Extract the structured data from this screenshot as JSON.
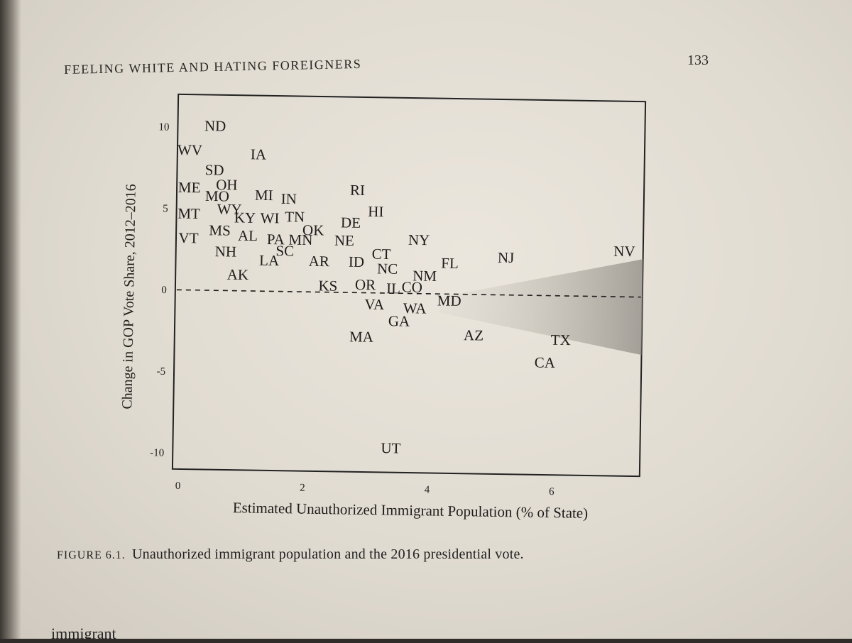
{
  "running_head": "FEELING WHITE AND HATING FOREIGNERS",
  "page_number": "133",
  "caption": {
    "label": "FIGURE 6.1.",
    "text": "Unauthorized immigrant population and the 2016 presidential vote."
  },
  "bottom_text": "immigrant",
  "chart_data": {
    "type": "scatter",
    "title": "",
    "xlabel": "Estimated Unauthorized Immigrant Population (% of State)",
    "ylabel": "Change in GOP Vote Share, 2012–2016",
    "xlim": [
      0,
      7.5
    ],
    "ylim": [
      -11,
      12
    ],
    "xticks": [
      0,
      2,
      4,
      6
    ],
    "yticks": [
      -10,
      -5,
      0,
      5,
      10
    ],
    "grid": false,
    "reference_line": {
      "y": 0,
      "style": "dashed"
    },
    "point_colors": {
      "text": "#1f1d1b",
      "band": "#9a968f"
    },
    "points": [
      {
        "label": "ND",
        "x": 0.6,
        "y": 10.0
      },
      {
        "label": "WV",
        "x": 0.2,
        "y": 8.5
      },
      {
        "label": "IA",
        "x": 1.3,
        "y": 8.3
      },
      {
        "label": "SD",
        "x": 0.6,
        "y": 7.3
      },
      {
        "label": "ME",
        "x": 0.2,
        "y": 6.2
      },
      {
        "label": "OH",
        "x": 0.8,
        "y": 6.4
      },
      {
        "label": "RI",
        "x": 2.9,
        "y": 6.2
      },
      {
        "label": "MO",
        "x": 0.65,
        "y": 5.7
      },
      {
        "label": "MI",
        "x": 1.4,
        "y": 5.8
      },
      {
        "label": "IN",
        "x": 1.8,
        "y": 5.6
      },
      {
        "label": "MT",
        "x": 0.2,
        "y": 4.6
      },
      {
        "label": "WY",
        "x": 0.85,
        "y": 4.9
      },
      {
        "label": "HI",
        "x": 3.2,
        "y": 4.9
      },
      {
        "label": "KY",
        "x": 1.1,
        "y": 4.4
      },
      {
        "label": "WI",
        "x": 1.5,
        "y": 4.4
      },
      {
        "label": "TN",
        "x": 1.9,
        "y": 4.5
      },
      {
        "label": "DE",
        "x": 2.8,
        "y": 4.2
      },
      {
        "label": "MS",
        "x": 0.7,
        "y": 3.6
      },
      {
        "label": "VT",
        "x": 0.2,
        "y": 3.1
      },
      {
        "label": "AL",
        "x": 1.15,
        "y": 3.3
      },
      {
        "label": "OK",
        "x": 2.2,
        "y": 3.7
      },
      {
        "label": "PA",
        "x": 1.6,
        "y": 3.1
      },
      {
        "label": "MN",
        "x": 2.0,
        "y": 3.1
      },
      {
        "label": "NE",
        "x": 2.7,
        "y": 3.1
      },
      {
        "label": "NY",
        "x": 3.9,
        "y": 3.2
      },
      {
        "label": "NH",
        "x": 0.8,
        "y": 2.3
      },
      {
        "label": "SC",
        "x": 1.75,
        "y": 2.4
      },
      {
        "label": "CT",
        "x": 3.3,
        "y": 2.3
      },
      {
        "label": "NJ",
        "x": 5.3,
        "y": 2.2
      },
      {
        "label": "NV",
        "x": 7.2,
        "y": 2.7
      },
      {
        "label": "LA",
        "x": 1.5,
        "y": 1.8
      },
      {
        "label": "AR",
        "x": 2.3,
        "y": 1.8
      },
      {
        "label": "ID",
        "x": 2.9,
        "y": 1.8
      },
      {
        "label": "FL",
        "x": 4.4,
        "y": 1.8
      },
      {
        "label": "NC",
        "x": 3.4,
        "y": 1.4
      },
      {
        "label": "AK",
        "x": 1.0,
        "y": 0.9
      },
      {
        "label": "NM",
        "x": 4.0,
        "y": 1.0
      },
      {
        "label": "KS",
        "x": 2.45,
        "y": 0.3
      },
      {
        "label": "OR",
        "x": 3.05,
        "y": 0.4
      },
      {
        "label": "IL",
        "x": 3.5,
        "y": 0.2
      },
      {
        "label": "CO",
        "x": 3.8,
        "y": 0.3
      },
      {
        "label": "MD",
        "x": 4.4,
        "y": -0.5
      },
      {
        "label": "VA",
        "x": 3.2,
        "y": -0.8
      },
      {
        "label": "WA",
        "x": 3.85,
        "y": -1.0
      },
      {
        "label": "GA",
        "x": 3.6,
        "y": -1.8
      },
      {
        "label": "AZ",
        "x": 4.8,
        "y": -2.6
      },
      {
        "label": "MA",
        "x": 3.0,
        "y": -2.8
      },
      {
        "label": "TX",
        "x": 6.2,
        "y": -2.8
      },
      {
        "label": "CA",
        "x": 5.95,
        "y": -4.2
      },
      {
        "label": "UT",
        "x": 3.5,
        "y": -9.6
      }
    ]
  }
}
